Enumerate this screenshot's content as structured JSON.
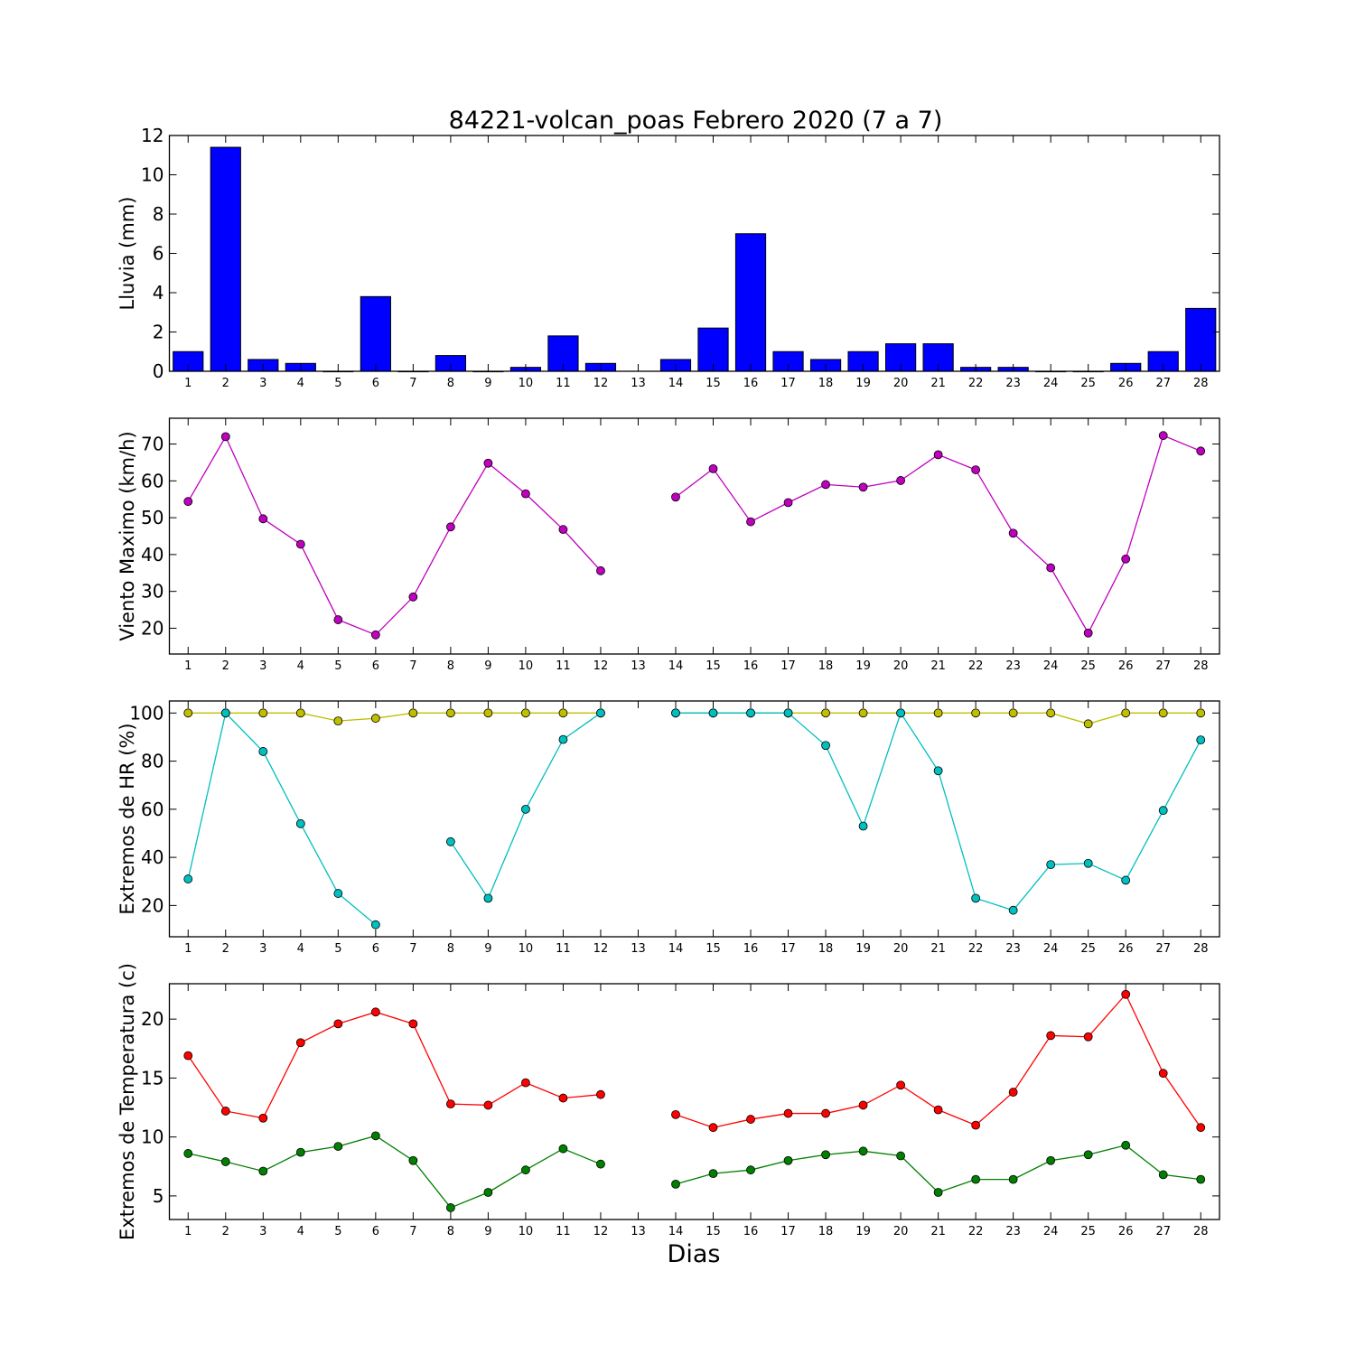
{
  "title": "84221-volcan_poas Febrero 2020  (7 a 7)",
  "xlabel": "Dias",
  "chart_data": [
    {
      "type": "bar",
      "ylabel": "Lluvia (mm)",
      "ylim": [
        0,
        12
      ],
      "yticks": [
        0,
        2,
        4,
        6,
        8,
        10,
        12
      ],
      "x": [
        1,
        2,
        3,
        4,
        5,
        6,
        7,
        8,
        9,
        10,
        11,
        12,
        13,
        14,
        15,
        16,
        17,
        18,
        19,
        20,
        21,
        22,
        23,
        24,
        25,
        26,
        27,
        28
      ],
      "series": [
        {
          "color": "#0000ff",
          "values": [
            1.0,
            11.4,
            0.6,
            0.4,
            0.0,
            3.8,
            0.0,
            0.8,
            0.0,
            0.2,
            1.8,
            0.4,
            null,
            0.6,
            2.2,
            7.0,
            1.0,
            0.6,
            1.0,
            1.4,
            1.4,
            0.2,
            0.2,
            0.0,
            0.0,
            0.4,
            1.0,
            3.2
          ]
        }
      ]
    },
    {
      "type": "line",
      "ylabel": "Viento Maximo (km/h)",
      "ylim": [
        13,
        77
      ],
      "yticks": [
        20,
        30,
        40,
        50,
        60,
        70
      ],
      "x": [
        1,
        2,
        3,
        4,
        5,
        6,
        7,
        8,
        9,
        10,
        11,
        12,
        13,
        14,
        15,
        16,
        17,
        18,
        19,
        20,
        21,
        22,
        23,
        24,
        25,
        26,
        27,
        28
      ],
      "series": [
        {
          "color": "#bf00bf",
          "values": [
            54.4,
            72.0,
            49.7,
            42.8,
            22.3,
            18.2,
            28.5,
            47.5,
            64.8,
            56.5,
            46.8,
            35.6,
            null,
            55.6,
            63.3,
            48.9,
            54.1,
            59.0,
            58.3,
            60.1,
            67.1,
            63.0,
            45.8,
            36.4,
            18.7,
            38.8,
            72.3,
            68.1
          ]
        }
      ]
    },
    {
      "type": "line",
      "ylabel": "Extremos de HR (%)",
      "ylim": [
        7,
        105
      ],
      "yticks": [
        20,
        40,
        60,
        80,
        100
      ],
      "x": [
        1,
        2,
        3,
        4,
        5,
        6,
        7,
        8,
        9,
        10,
        11,
        12,
        13,
        14,
        15,
        16,
        17,
        18,
        19,
        20,
        21,
        22,
        23,
        24,
        25,
        26,
        27,
        28
      ],
      "series": [
        {
          "color": "#bfbf00",
          "values": [
            100,
            100,
            100,
            100,
            96.7,
            97.8,
            100,
            100,
            100,
            100,
            100,
            100,
            null,
            100,
            100,
            100,
            100,
            100,
            100,
            100,
            100,
            100,
            100,
            100,
            95.5,
            100,
            100,
            100
          ]
        },
        {
          "color": "#00bfbf",
          "values": [
            31,
            100,
            84,
            54,
            25,
            12,
            null,
            46.5,
            23,
            60,
            89,
            100,
            null,
            100,
            100,
            100,
            100,
            86.5,
            53,
            100,
            76,
            23,
            18,
            37,
            37.5,
            30.5,
            59.5,
            88.8
          ]
        }
      ]
    },
    {
      "type": "line",
      "ylabel": "Extremos de Temperatura (c)",
      "ylim": [
        3,
        23
      ],
      "yticks": [
        5,
        10,
        15,
        20
      ],
      "x": [
        1,
        2,
        3,
        4,
        5,
        6,
        7,
        8,
        9,
        10,
        11,
        12,
        13,
        14,
        15,
        16,
        17,
        18,
        19,
        20,
        21,
        22,
        23,
        24,
        25,
        26,
        27,
        28
      ],
      "series": [
        {
          "color": "#ff0000",
          "values": [
            16.9,
            12.2,
            11.6,
            18.0,
            19.6,
            20.6,
            19.6,
            12.8,
            12.7,
            14.6,
            13.3,
            13.6,
            null,
            11.9,
            10.8,
            11.5,
            12.0,
            12.0,
            12.7,
            14.4,
            12.3,
            11.0,
            13.8,
            18.6,
            18.5,
            22.1,
            15.4,
            10.8
          ]
        },
        {
          "color": "#007f00",
          "values": [
            8.6,
            7.9,
            7.1,
            8.7,
            9.2,
            10.1,
            8.0,
            4.0,
            5.3,
            7.2,
            9.0,
            7.7,
            null,
            6.0,
            6.9,
            7.2,
            8.0,
            8.5,
            8.8,
            8.4,
            5.3,
            6.4,
            6.4,
            8.0,
            8.5,
            9.3,
            6.8,
            6.4
          ]
        }
      ]
    }
  ]
}
